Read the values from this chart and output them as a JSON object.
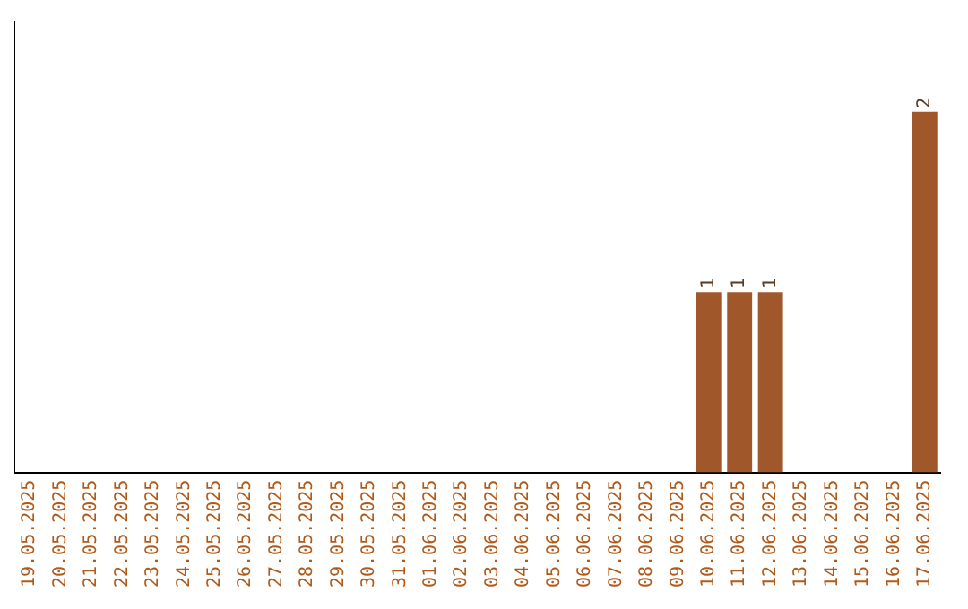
{
  "chart_data": {
    "type": "bar",
    "categories": [
      "19.05.2025",
      "20.05.2025",
      "21.05.2025",
      "22.05.2025",
      "23.05.2025",
      "24.05.2025",
      "25.05.2025",
      "26.05.2025",
      "27.05.2025",
      "28.05.2025",
      "29.05.2025",
      "30.05.2025",
      "31.05.2025",
      "01.06.2025",
      "02.06.2025",
      "03.06.2025",
      "04.06.2025",
      "05.06.2025",
      "06.06.2025",
      "07.06.2025",
      "08.06.2025",
      "09.06.2025",
      "10.06.2025",
      "11.06.2025",
      "12.06.2025",
      "13.06.2025",
      "14.06.2025",
      "15.06.2025",
      "16.06.2025",
      "17.06.2025"
    ],
    "values": [
      null,
      null,
      null,
      null,
      null,
      null,
      null,
      null,
      null,
      null,
      null,
      null,
      null,
      null,
      null,
      null,
      null,
      null,
      null,
      null,
      null,
      null,
      1,
      1,
      1,
      null,
      null,
      null,
      null,
      2
    ],
    "data_labels": true,
    "color": "#a0572a",
    "grid": false,
    "legend": false,
    "tick_labels": "x"
  }
}
